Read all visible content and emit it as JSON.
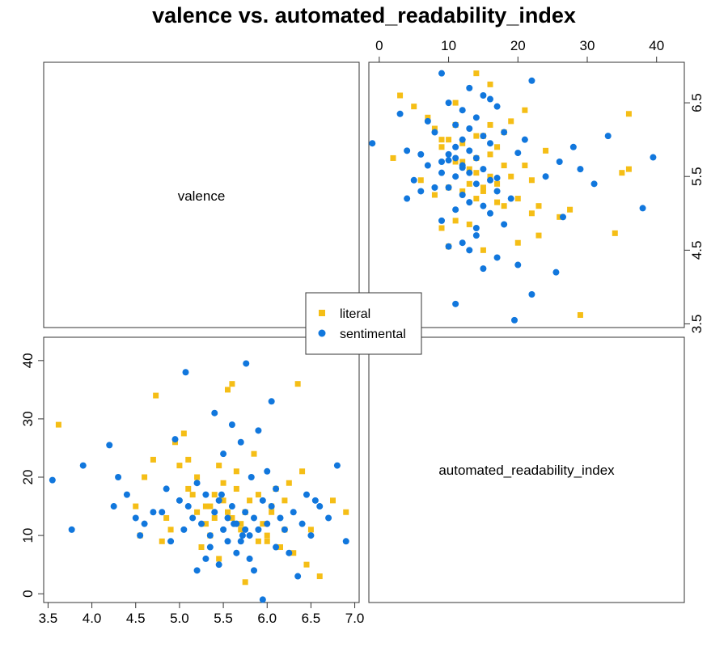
{
  "chart_data": {
    "type": "scatter",
    "title": "valence vs. automated_readability_index",
    "variables": [
      "valence",
      "automated_readability_index"
    ],
    "legend": {
      "placement": "center",
      "entries": [
        "literal",
        "sentimental"
      ]
    },
    "colors": {
      "literal": "#F5BE16",
      "sentimental": "#1177DD"
    },
    "axes": {
      "valence": {
        "ticks": [
          "3.5",
          "4.0",
          "4.5",
          "5.0",
          "5.5",
          "6.0",
          "6.5",
          "7.0"
        ],
        "range": [
          3.45,
          7.05
        ]
      },
      "valence_right": {
        "ticks": [
          "3.5",
          "4.5",
          "5.5",
          "6.5"
        ],
        "range": [
          3.45,
          7.05
        ]
      },
      "automated_readability_index": {
        "ticks": [
          "0",
          "10",
          "20",
          "30",
          "40"
        ],
        "range": [
          -1.5,
          44
        ]
      }
    },
    "series": [
      {
        "name": "literal",
        "marker": "square",
        "x": [
          3.62,
          4.73,
          5.6,
          6.35,
          5.55,
          5.05,
          4.95,
          6.5,
          6.9,
          6.75,
          5.4,
          5.3,
          5.7,
          5.9,
          6.2,
          6.1,
          5.2,
          5.75,
          6.0,
          4.6,
          5.5,
          5.45,
          5.65,
          5.85,
          6.05,
          5.35,
          5.25,
          5.15,
          6.25,
          6.4,
          4.85,
          4.9,
          5.0,
          5.1,
          5.95,
          6.15,
          6.3,
          6.45,
          6.6,
          4.5,
          4.55,
          4.7,
          5.8,
          5.6,
          5.55,
          5.7,
          5.4,
          5.3,
          5.9,
          6.0,
          5.5,
          5.45,
          5.65,
          5.2,
          5.1,
          4.8,
          6.05,
          6.2,
          5.75,
          5.35
        ],
        "y": [
          29,
          34,
          36,
          36,
          35,
          27.5,
          26,
          11,
          14,
          16,
          13,
          15,
          12,
          9,
          11,
          18,
          20,
          14,
          10,
          20,
          16,
          22,
          18,
          24,
          15,
          10,
          8,
          17,
          19,
          21,
          13,
          11,
          22,
          23,
          12,
          8,
          7,
          5,
          3,
          15,
          10,
          23,
          16,
          13,
          14,
          11,
          17,
          12,
          17,
          9,
          19,
          6,
          21,
          14,
          18,
          9,
          14,
          16,
          2,
          15
        ]
      },
      {
        "name": "sentimental",
        "marker": "circle",
        "x": [
          3.55,
          3.77,
          3.9,
          4.2,
          4.25,
          4.3,
          4.4,
          4.5,
          4.55,
          4.6,
          4.8,
          4.85,
          4.9,
          5.0,
          5.05,
          5.1,
          5.15,
          5.2,
          5.25,
          5.3,
          5.35,
          5.4,
          5.45,
          5.5,
          5.55,
          5.6,
          5.65,
          5.7,
          5.75,
          5.8,
          5.85,
          5.9,
          5.95,
          6.0,
          6.05,
          6.1,
          6.15,
          6.2,
          6.3,
          6.4,
          6.5,
          6.6,
          6.7,
          6.8,
          6.9,
          5.07,
          5.76,
          6.05,
          5.4,
          5.6,
          5.7,
          5.5,
          5.9,
          6.0,
          5.3,
          5.2,
          6.25,
          6.35,
          5.45,
          5.65,
          5.8,
          5.55,
          5.95,
          5.35,
          5.85,
          6.1,
          4.95,
          4.7,
          6.45,
          6.55,
          5.75,
          5.62,
          5.48,
          5.72,
          5.82
        ],
        "y": [
          19.5,
          11,
          22,
          25.5,
          15,
          20,
          17,
          13,
          10,
          12,
          14,
          18,
          9,
          16,
          11,
          15,
          13,
          19,
          12,
          17,
          10,
          14,
          16,
          11,
          13,
          15,
          12,
          9,
          14,
          10,
          13,
          11,
          16,
          12,
          15,
          8,
          13,
          11,
          14,
          12,
          10,
          15,
          13,
          22,
          9,
          38,
          39.5,
          33,
          31,
          29,
          26,
          24,
          28,
          21,
          6,
          4,
          7,
          3,
          5,
          7,
          6,
          9,
          -1,
          8,
          4,
          18,
          26.5,
          14,
          17,
          16,
          11,
          12,
          17,
          10,
          20
        ]
      }
    ]
  }
}
